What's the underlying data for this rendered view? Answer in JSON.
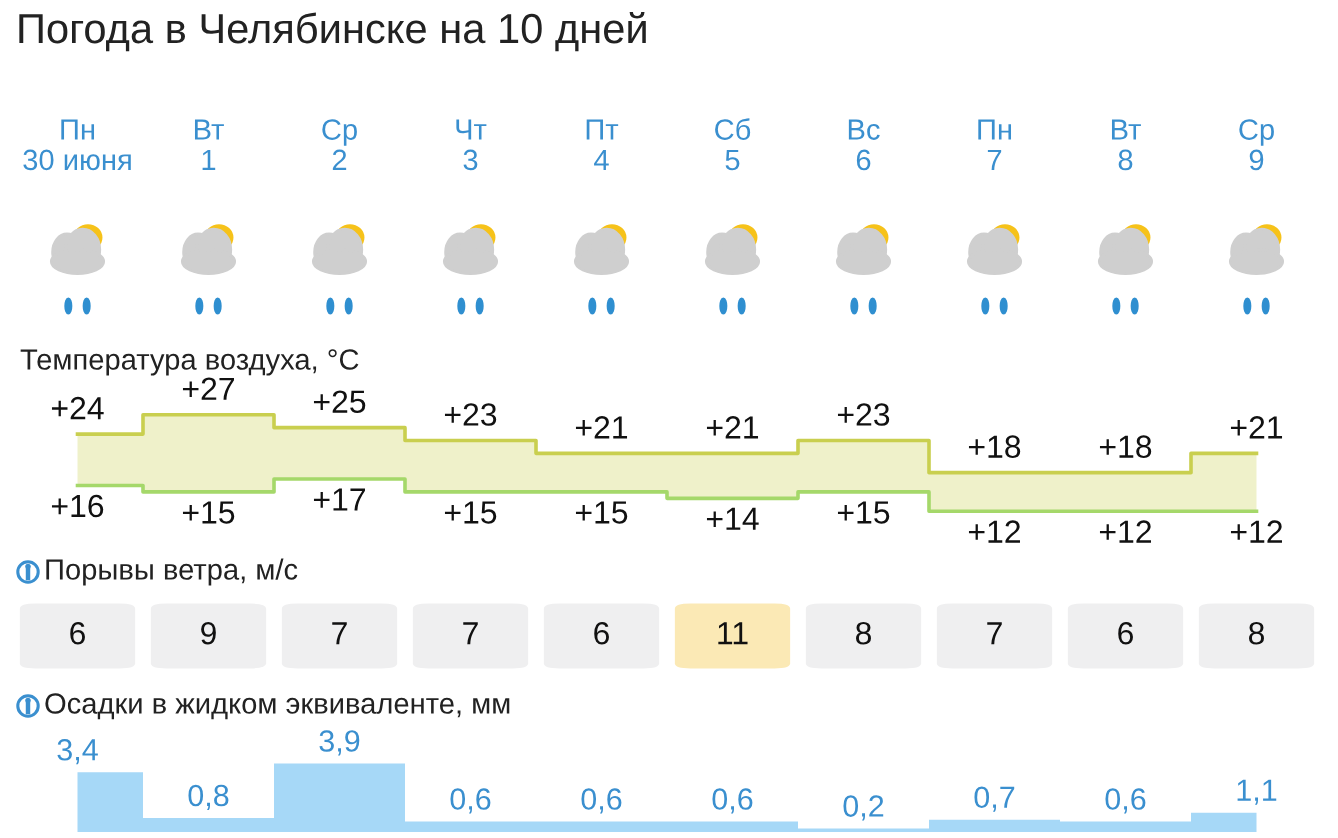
{
  "chart_data": [
    {
      "type": "step",
      "title": "Погода в Челябинске на 10 дней",
      "subtitle": "Температура воздуха, °C",
      "categories": [
        "Пн\n30 июня",
        "Вт\n1",
        "Ср\n2",
        "Чт\n3",
        "Пт\n4",
        "Сб\n5",
        "Вс\n6",
        "Пн\n7",
        "Вт\n8",
        "Ср\n9"
      ],
      "tick_labels": "x",
      "series": [
        {
          "color": "#c9cf4f",
          "values": [
            24,
            27,
            25,
            23,
            21,
            21,
            23,
            18,
            18,
            21
          ],
          "value_labels": [
            "+24",
            "+27",
            "+25",
            "+23",
            "+21",
            "+21",
            "+23",
            "+18",
            "+18",
            "+21"
          ]
        },
        {
          "color": "#a5d86a",
          "values": [
            16,
            15,
            17,
            15,
            15,
            14,
            15,
            12,
            12,
            12
          ],
          "value_labels": [
            "+16",
            "+15",
            "+17",
            "+15",
            "+15",
            "+14",
            "+15",
            "+12",
            "+12",
            "+12"
          ]
        }
      ]
    },
    {
      "type": "other",
      "title": "Порывы ветра, м/с",
      "values": [
        6,
        9,
        7,
        7,
        6,
        11,
        8,
        7,
        6,
        8
      ],
      "data_labels": true,
      "colors": [
        "#efeff0",
        "#efeff0",
        "#efeff0",
        "#efeff0",
        "#efeff0",
        "#fbe9b5",
        "#efeff0",
        "#efeff0",
        "#efeff0",
        "#efeff0"
      ]
    },
    {
      "type": "area",
      "title": "Осадки в жидком эквиваленте, мм",
      "categories": [
        null,
        null,
        null,
        null,
        null,
        null,
        null,
        null,
        null,
        null
      ],
      "values": [
        3.4,
        0.8,
        3.9,
        0.6,
        0.6,
        0.6,
        0.2,
        0.7,
        0.6,
        1.1
      ],
      "color": "#a6d8f7",
      "value_labels": [
        "3,4",
        "0,8",
        "3,9",
        "0,6",
        "0,6",
        "0,6",
        "0,2",
        "0,7",
        "0,6",
        "1,1"
      ]
    }
  ]
}
